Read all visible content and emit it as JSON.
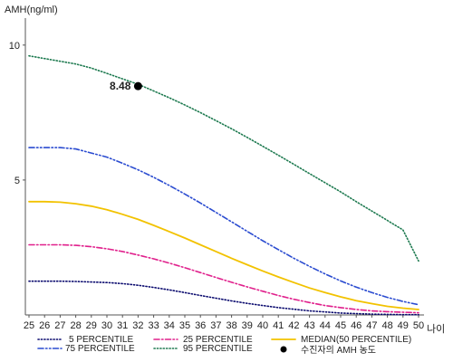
{
  "chart_data": {
    "type": "line",
    "ylabel": "AMH(ng/ml)",
    "xlabel": "나이",
    "x": [
      25,
      26,
      27,
      28,
      29,
      30,
      31,
      32,
      33,
      34,
      35,
      36,
      37,
      38,
      39,
      40,
      41,
      42,
      43,
      44,
      45,
      46,
      47,
      48,
      49,
      50
    ],
    "xlim": [
      25,
      50
    ],
    "ylim": [
      0,
      11
    ],
    "yticks": [
      5,
      10
    ],
    "grid": false,
    "legend_position": "bottom",
    "series": [
      {
        "name": "5 PERCENTILE",
        "color": "#0a0a6e",
        "dash": "dotted",
        "values": [
          1.25,
          1.25,
          1.25,
          1.24,
          1.22,
          1.2,
          1.16,
          1.1,
          1.02,
          0.93,
          0.83,
          0.72,
          0.62,
          0.52,
          0.43,
          0.35,
          0.27,
          0.21,
          0.15,
          0.11,
          0.07,
          0.05,
          0.03,
          0.02,
          0.01,
          0.01
        ]
      },
      {
        "name": "25 PERCENTILE",
        "color": "#e0208c",
        "dash": "dashdot",
        "values": [
          2.6,
          2.6,
          2.6,
          2.58,
          2.53,
          2.45,
          2.35,
          2.22,
          2.08,
          1.92,
          1.75,
          1.57,
          1.39,
          1.21,
          1.04,
          0.88,
          0.72,
          0.58,
          0.46,
          0.35,
          0.27,
          0.2,
          0.15,
          0.12,
          0.1,
          0.08
        ]
      },
      {
        "name": "MEDIAN(50 PERCENTILE)",
        "color": "#f2c200",
        "dash": "solid",
        "values": [
          4.2,
          4.2,
          4.18,
          4.12,
          4.03,
          3.9,
          3.73,
          3.54,
          3.32,
          3.09,
          2.85,
          2.6,
          2.35,
          2.1,
          1.86,
          1.63,
          1.41,
          1.2,
          1.0,
          0.83,
          0.67,
          0.53,
          0.42,
          0.32,
          0.25,
          0.2
        ]
      },
      {
        "name": "75 PERCENTILE",
        "color": "#2a4bd0",
        "dash": "dashdotdot",
        "values": [
          6.2,
          6.2,
          6.2,
          6.15,
          6.0,
          5.85,
          5.62,
          5.38,
          5.1,
          4.8,
          4.48,
          4.15,
          3.8,
          3.45,
          3.1,
          2.75,
          2.42,
          2.1,
          1.8,
          1.52,
          1.26,
          1.03,
          0.83,
          0.65,
          0.5,
          0.38
        ]
      },
      {
        "name": "95 PERCENTILE",
        "color": "#1e7a50",
        "dash": "dotted",
        "values": [
          9.6,
          9.5,
          9.4,
          9.3,
          9.15,
          8.95,
          8.75,
          8.55,
          8.3,
          8.05,
          7.78,
          7.5,
          7.2,
          6.9,
          6.58,
          6.25,
          5.92,
          5.58,
          5.24,
          4.9,
          4.56,
          4.2,
          3.85,
          3.5,
          3.15,
          2.0
        ]
      }
    ],
    "marker": {
      "name": "수진자의 AMH 농도",
      "x": 32,
      "y": 8.48,
      "label": "8.48",
      "color": "#000000"
    }
  }
}
